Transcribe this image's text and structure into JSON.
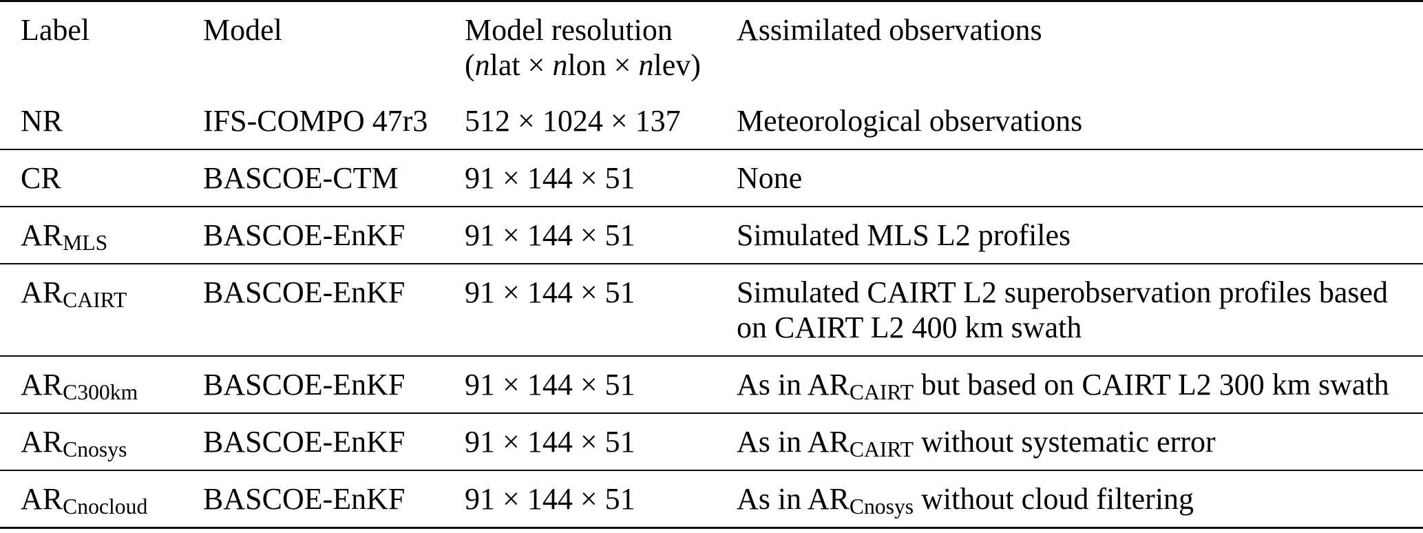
{
  "table": {
    "header": {
      "label": "Label",
      "model": "Model",
      "resolution_line1": "Model resolution",
      "resolution_line2": [
        {
          "text": "("
        },
        {
          "text": "n",
          "style": "italic"
        },
        {
          "text": "lat × "
        },
        {
          "text": "n",
          "style": "italic"
        },
        {
          "text": "lon × "
        },
        {
          "text": "n",
          "style": "italic"
        },
        {
          "text": "lev)"
        }
      ],
      "observations": "Assimilated observations"
    },
    "rows": [
      {
        "label": [
          {
            "text": "NR"
          }
        ],
        "model": "IFS-COMPO 47r3",
        "resolution": "512 × 1024 × 137",
        "observations": [
          {
            "text": "Meteorological observations"
          }
        ]
      },
      {
        "label": [
          {
            "text": "CR"
          }
        ],
        "model": "BASCOE-CTM",
        "resolution": "91 × 144 × 51",
        "observations": [
          {
            "text": "None"
          }
        ]
      },
      {
        "label": [
          {
            "text": "AR"
          },
          {
            "text": "MLS",
            "style": "sub"
          }
        ],
        "model": "BASCOE-EnKF",
        "resolution": "91 × 144 × 51",
        "observations": [
          {
            "text": "Simulated MLS L2 profiles"
          }
        ]
      },
      {
        "label": [
          {
            "text": "AR"
          },
          {
            "text": "CAIRT",
            "style": "sub"
          }
        ],
        "model": "BASCOE-EnKF",
        "resolution": "91 × 144 × 51",
        "observations": [
          {
            "text": "Simulated CAIRT L2 superobservation profiles based on CAIRT L2 400 km swath"
          }
        ]
      },
      {
        "label": [
          {
            "text": "AR"
          },
          {
            "text": "C300km",
            "style": "sub"
          }
        ],
        "model": "BASCOE-EnKF",
        "resolution": "91 × 144 × 51",
        "observations": [
          {
            "text": "As in AR"
          },
          {
            "text": "CAIRT",
            "style": "sub"
          },
          {
            "text": " but based on CAIRT L2 300 km swath"
          }
        ]
      },
      {
        "label": [
          {
            "text": "AR"
          },
          {
            "text": "Cnosys",
            "style": "sub"
          }
        ],
        "model": "BASCOE-EnKF",
        "resolution": "91 × 144 × 51",
        "observations": [
          {
            "text": "As in AR"
          },
          {
            "text": "CAIRT",
            "style": "sub"
          },
          {
            "text": " without systematic error"
          }
        ]
      },
      {
        "label": [
          {
            "text": "AR"
          },
          {
            "text": "Cnocloud",
            "style": "sub"
          }
        ],
        "model": "BASCOE-EnKF",
        "resolution": "91 × 144 × 51",
        "observations": [
          {
            "text": "As in AR"
          },
          {
            "text": "Cnosys",
            "style": "sub"
          },
          {
            "text": " without cloud filtering"
          }
        ]
      }
    ]
  }
}
